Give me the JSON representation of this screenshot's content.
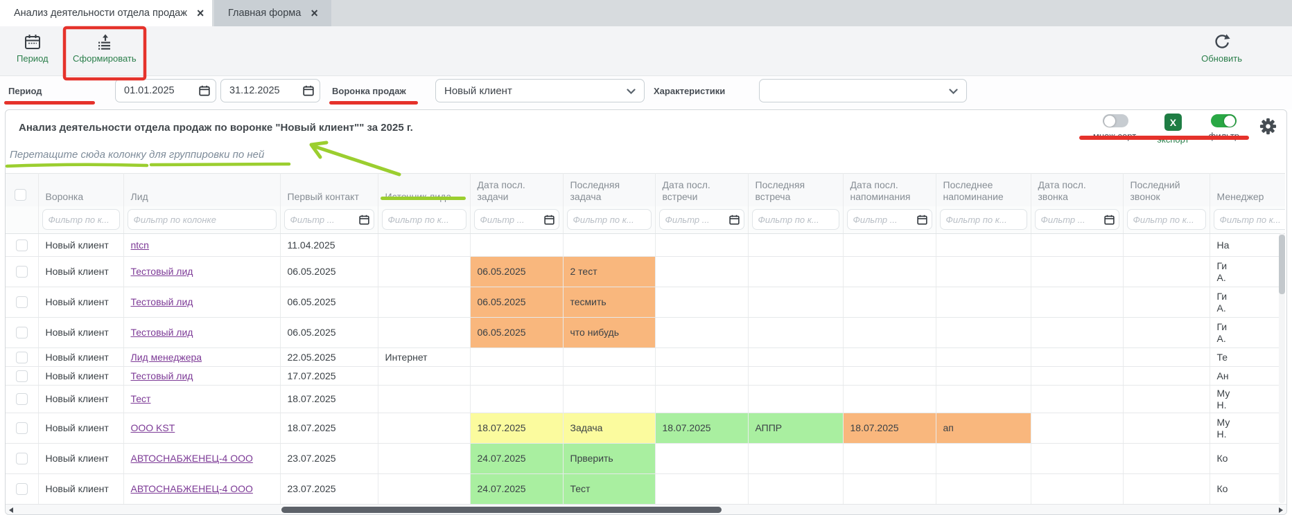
{
  "tabs": [
    {
      "label": "Анализ деятельности отдела продаж",
      "close": "×",
      "active": true
    },
    {
      "label": "Главная форма",
      "close": "×",
      "active": false
    }
  ],
  "toolbar": {
    "period": "Период",
    "generate": "Сформировать",
    "refresh": "Обновить"
  },
  "filterbar": {
    "period_label": "Период",
    "date_from": "01.01.2025",
    "date_to": "31.12.2025",
    "funnel_label": "Воронка продаж",
    "funnel_value": "Новый клиент",
    "characteristics_label": "Характеристики",
    "characteristics_value": ""
  },
  "panel": {
    "title": "Анализ деятельности отдела продаж по воронке \"Новый клиент\"\" за 2025 г.",
    "controls": {
      "multisort": "множ.сорт.",
      "excel_x": "X",
      "export": "экспорт",
      "filter": "фильтр",
      "multisort_on": false,
      "filter_on": true
    },
    "group_hint": "Перетащите сюда колонку для группировки по ней"
  },
  "table": {
    "columns": [
      {
        "key": "check",
        "label": "",
        "ph": "",
        "type": "check"
      },
      {
        "key": "voronka",
        "label": "Воронка",
        "ph": "Фильтр по к...",
        "type": "text"
      },
      {
        "key": "lead",
        "label": "Лид",
        "ph": "Фильтр по колонке",
        "type": "text"
      },
      {
        "key": "first_contact",
        "label": "Первый контакт",
        "ph": "Фильтр ...",
        "type": "date"
      },
      {
        "key": "source",
        "label": "Источник лида",
        "ph": "Фильтр по к...",
        "type": "text"
      },
      {
        "key": "task_date",
        "label": "Дата посл.\nзадачи",
        "ph": "Фильтр ...",
        "type": "date"
      },
      {
        "key": "task",
        "label": "Последняя\nзадача",
        "ph": "Фильтр по к...",
        "type": "text"
      },
      {
        "key": "meet_date",
        "label": "Дата посл.\nвстречи",
        "ph": "Фильтр ...",
        "type": "date"
      },
      {
        "key": "meet",
        "label": "Последняя\nвстреча",
        "ph": "Фильтр по к...",
        "type": "text"
      },
      {
        "key": "remind_date",
        "label": "Дата посл.\nнапоминания",
        "ph": "Фильтр ...",
        "type": "date"
      },
      {
        "key": "remind",
        "label": "Последнее\nнапоминание",
        "ph": "Фильтр по к...",
        "type": "text"
      },
      {
        "key": "call_date",
        "label": "Дата посл.\nзвонка",
        "ph": "Фильтр ...",
        "type": "date"
      },
      {
        "key": "call",
        "label": "Последний\nзвонок",
        "ph": "Фильтр по к...",
        "type": "text"
      },
      {
        "key": "manager",
        "label": "Менеджер",
        "ph": "Фильтр по к...",
        "type": "text"
      }
    ],
    "rows": [
      {
        "size": "m",
        "voronka": "Новый клиент",
        "lead": "ntcn",
        "first_contact": "11.04.2025",
        "manager": "На"
      },
      {
        "size": "xl",
        "voronka": "Новый клиент",
        "lead": "Тестовый лид",
        "first_contact": "06.05.2025",
        "task_date": {
          "t": "06.05.2025",
          "bg": "orange"
        },
        "task": {
          "t": "2 тест",
          "bg": "orange"
        },
        "manager": "Ги\nА."
      },
      {
        "size": "xl",
        "voronka": "Новый клиент",
        "lead": "Тестовый лид",
        "first_contact": "06.05.2025",
        "task_date": {
          "t": "06.05.2025",
          "bg": "orange"
        },
        "task": {
          "t": "тесмить",
          "bg": "orange"
        },
        "manager": "Ги\nА."
      },
      {
        "size": "xl",
        "voronka": "Новый клиент",
        "lead": "Тестовый лид",
        "first_contact": "06.05.2025",
        "task_date": {
          "t": "06.05.2025",
          "bg": "orange"
        },
        "task": {
          "t": "что нибудь",
          "bg": "orange"
        },
        "manager": "Ги\nА."
      },
      {
        "size": "s",
        "voronka": "Новый клиент",
        "lead": "Лид менеджера",
        "first_contact": "22.05.2025",
        "source": "Интернет",
        "manager": "Те"
      },
      {
        "size": "s",
        "voronka": "Новый клиент",
        "lead": "Тестовый лид",
        "first_contact": "17.07.2025",
        "manager": "Ан"
      },
      {
        "size": "l",
        "voronka": "Новый клиент",
        "lead": "Тест",
        "first_contact": "18.07.2025",
        "manager": "Му\nН."
      },
      {
        "size": "xl",
        "voronka": "Новый клиент",
        "lead": "ООО KST",
        "first_contact": "18.07.2025",
        "task_date": {
          "t": "18.07.2025",
          "bg": "yellow"
        },
        "task": {
          "t": "Задача",
          "bg": "yellow"
        },
        "meet_date": {
          "t": "18.07.2025",
          "bg": "green"
        },
        "meet": {
          "t": "АППР",
          "bg": "green"
        },
        "remind_date": {
          "t": "18.07.2025",
          "bg": "orange"
        },
        "remind": {
          "t": "ап",
          "bg": "orange"
        },
        "manager": "Му\nН."
      },
      {
        "size": "xl",
        "voronka": "Новый клиент",
        "lead": "АВТОСНАБЖЕНЕЦ-4 ООО",
        "first_contact": "23.07.2025",
        "task_date": {
          "t": "24.07.2025",
          "bg": "green"
        },
        "task": {
          "t": "Прверить",
          "bg": "green"
        },
        "manager": "Ко"
      },
      {
        "size": "xl",
        "voronka": "Новый клиент",
        "lead": "АВТОСНАБЖЕНЕЦ-4 ООО",
        "first_contact": "23.07.2025",
        "task_date": {
          "t": "24.07.2025",
          "bg": "green"
        },
        "task": {
          "t": "Тест",
          "bg": "green"
        },
        "manager": "Ко"
      }
    ]
  },
  "colors": {
    "annotation_red": "#e5322b",
    "annotation_green": "#9bce2f",
    "accent_green": "#2a7e4a",
    "link_purple": "#7c3996",
    "cell_orange": "#f9b77d",
    "cell_yellow": "#fbfb9e",
    "cell_green": "#a9efa0",
    "excel_green": "#1f7d44"
  }
}
